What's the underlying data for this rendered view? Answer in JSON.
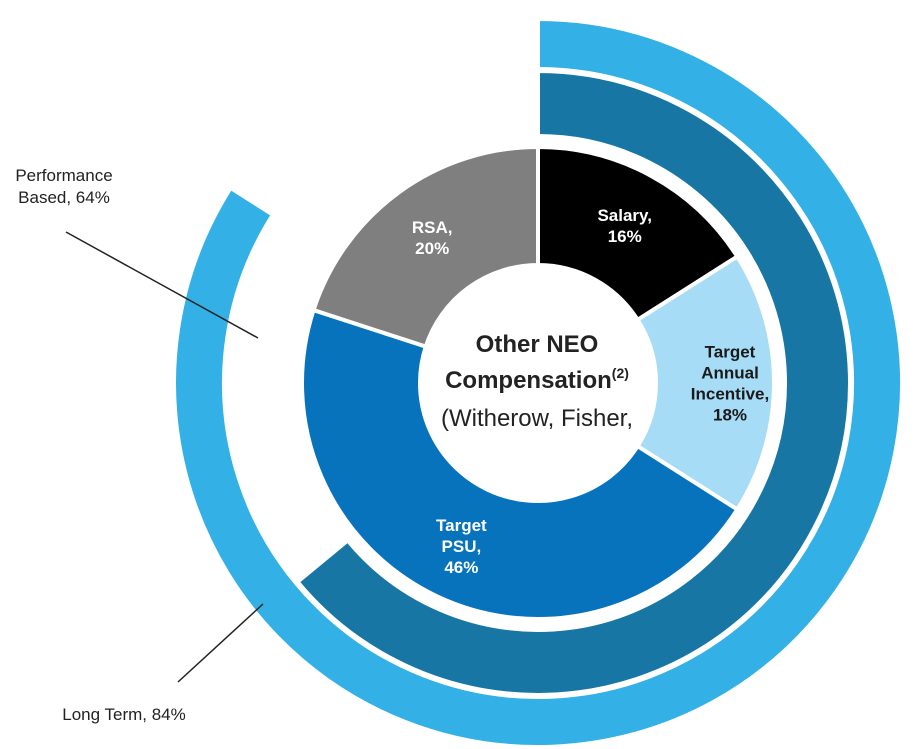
{
  "chart_data": {
    "type": "pie",
    "title_line1": "Other NEO",
    "title_line2": "Compensation",
    "title_superscript": "(2)",
    "subtitle": "(Witherow, Fisher,",
    "inner_ring": {
      "slices": [
        {
          "lines": [
            "Salary,",
            "16%"
          ],
          "value": 16,
          "color": "#000000",
          "text_color": "#ffffff"
        },
        {
          "lines": [
            "Target",
            "Annual",
            "Incentive,",
            "18%"
          ],
          "value": 18,
          "color": "#a6dcf5",
          "text_color": "#1a1a1a"
        },
        {
          "lines": [
            "Target",
            "PSU,",
            "46%"
          ],
          "value": 46,
          "color": "#0873bd",
          "text_color": "#ffffff"
        },
        {
          "lines": [
            "RSA,",
            "20%"
          ],
          "value": 20,
          "color": "#7f7f7f",
          "text_color": "#ffffff"
        }
      ]
    },
    "outer_rings": [
      {
        "name": "Performance Based",
        "label": "Performance\nBased, 64%",
        "value": 64,
        "color": "#1776a3"
      },
      {
        "name": "Long Term",
        "label": "Long Term, 84%",
        "value": 84,
        "color": "#33b0e6"
      }
    ]
  }
}
